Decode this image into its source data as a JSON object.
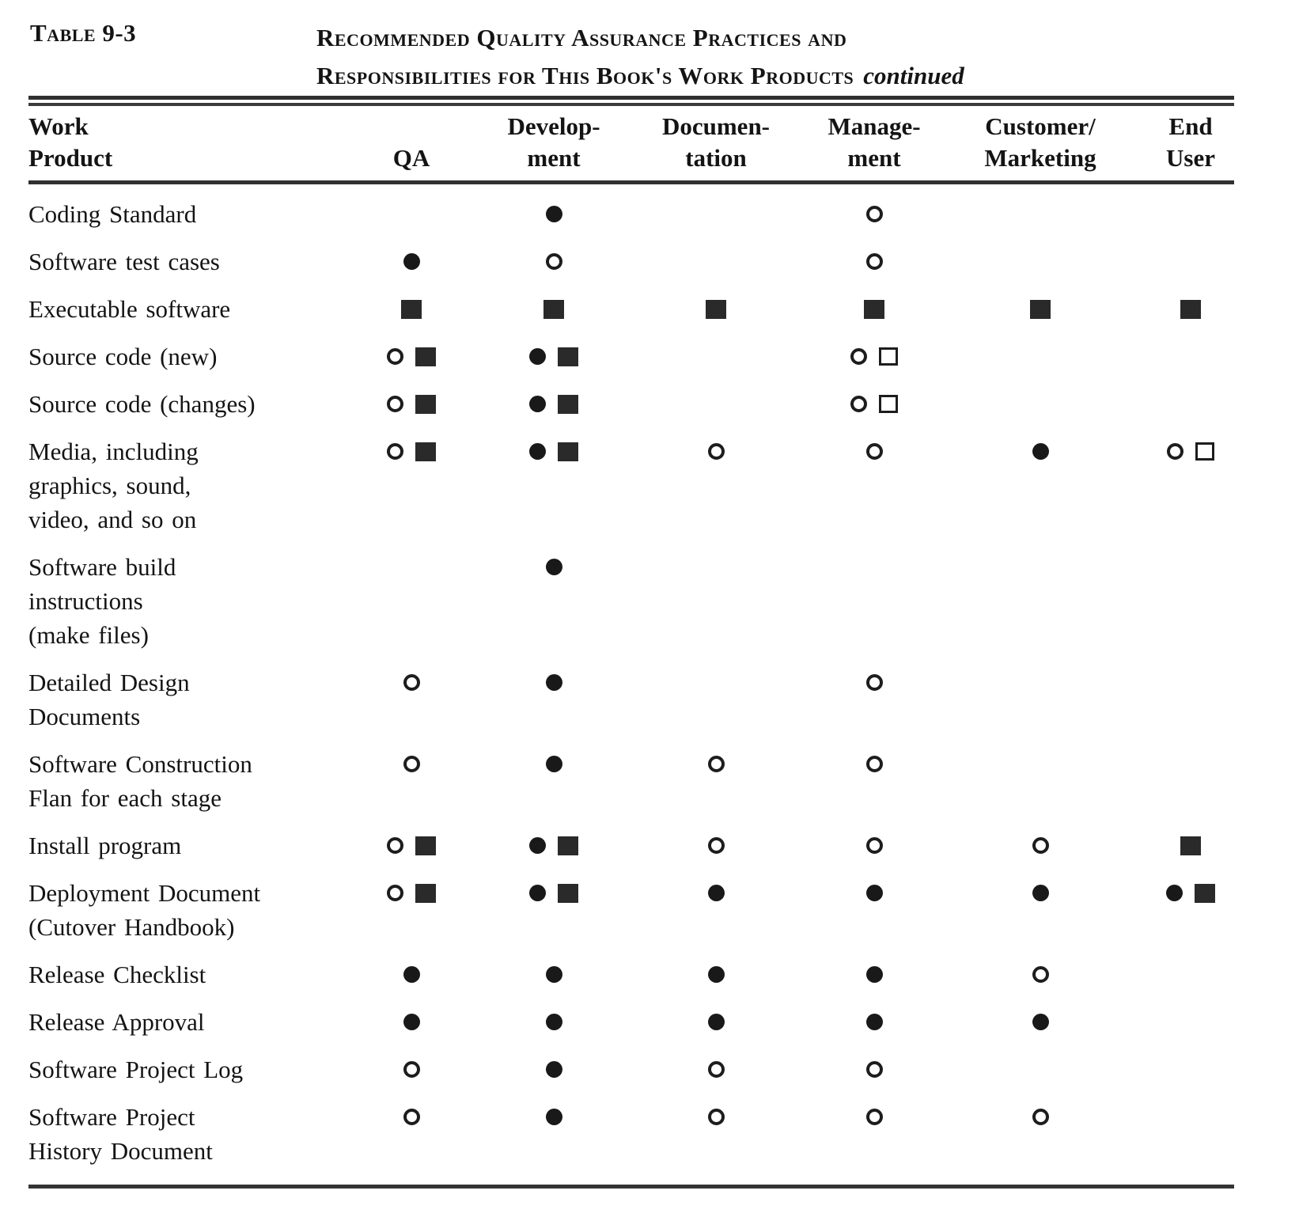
{
  "page": {
    "table_label": "Table 9-3",
    "title_line1": "Recommended Quality Assurance Practices and",
    "title_line2": "Responsibilities for This Book's Work Products",
    "title_continued": "continued"
  },
  "header": {
    "columns": [
      {
        "line1": "Work",
        "line2": "Product"
      },
      {
        "line1": "",
        "line2": "QA"
      },
      {
        "line1": "Develop-",
        "line2": "ment"
      },
      {
        "line1": "Documen-",
        "line2": "tation"
      },
      {
        "line1": "Manage-",
        "line2": "ment"
      },
      {
        "line1": "Customer/",
        "line2": "Marketing"
      },
      {
        "line1": "End",
        "line2": "User"
      }
    ]
  },
  "symbols_legend": {
    "filled-circle": "●",
    "open-circle": "○",
    "filled-square": "■",
    "open-square": "□"
  },
  "table": {
    "column_keys": [
      "qa",
      "development",
      "documentation",
      "management",
      "customer-marketing",
      "end-user"
    ],
    "rows": [
      {
        "label_lines": [
          "Coding Standard"
        ],
        "cells": [
          [],
          [
            "filled-circle"
          ],
          [],
          [
            "open-circle"
          ],
          [],
          []
        ]
      },
      {
        "label_lines": [
          "Software test cases"
        ],
        "cells": [
          [
            "filled-circle"
          ],
          [
            "open-circle"
          ],
          [],
          [
            "open-circle"
          ],
          [],
          []
        ]
      },
      {
        "label_lines": [
          "Executable software"
        ],
        "cells": [
          [
            "filled-square"
          ],
          [
            "filled-square"
          ],
          [
            "filled-square"
          ],
          [
            "filled-square"
          ],
          [
            "filled-square"
          ],
          [
            "filled-square"
          ]
        ]
      },
      {
        "label_lines": [
          "Source code (new)"
        ],
        "cells": [
          [
            "open-circle",
            "filled-square"
          ],
          [
            "filled-circle",
            "filled-square"
          ],
          [],
          [
            "open-circle",
            "open-square"
          ],
          [],
          []
        ]
      },
      {
        "label_lines": [
          "Source code (changes)"
        ],
        "cells": [
          [
            "open-circle",
            "filled-square"
          ],
          [
            "filled-circle",
            "filled-square"
          ],
          [],
          [
            "open-circle",
            "open-square"
          ],
          [],
          []
        ]
      },
      {
        "label_lines": [
          "Media, including",
          "graphics, sound,",
          "video, and so on"
        ],
        "cells": [
          [
            "open-circle",
            "filled-square"
          ],
          [
            "filled-circle",
            "filled-square"
          ],
          [
            "open-circle"
          ],
          [
            "open-circle"
          ],
          [
            "filled-circle"
          ],
          [
            "open-circle",
            "open-square"
          ]
        ]
      },
      {
        "label_lines": [
          "Software build",
          "instructions",
          "(make files)"
        ],
        "cells": [
          [],
          [
            "filled-circle"
          ],
          [],
          [],
          [],
          []
        ]
      },
      {
        "label_lines": [
          "Detailed Design",
          "Documents"
        ],
        "cells": [
          [
            "open-circle"
          ],
          [
            "filled-circle"
          ],
          [],
          [
            "open-circle"
          ],
          [],
          []
        ]
      },
      {
        "label_lines": [
          "Software Construction",
          "Flan for each stage"
        ],
        "cells": [
          [
            "open-circle"
          ],
          [
            "filled-circle"
          ],
          [
            "open-circle"
          ],
          [
            "open-circle"
          ],
          [],
          []
        ]
      },
      {
        "label_lines": [
          "Install program"
        ],
        "cells": [
          [
            "open-circle",
            "filled-square"
          ],
          [
            "filled-circle",
            "filled-square"
          ],
          [
            "open-circle"
          ],
          [
            "open-circle"
          ],
          [
            "open-circle"
          ],
          [
            "filled-square"
          ]
        ]
      },
      {
        "label_lines": [
          "Deployment Document",
          "(Cutover Handbook)"
        ],
        "cells": [
          [
            "open-circle",
            "filled-square"
          ],
          [
            "filled-circle",
            "filled-square"
          ],
          [
            "filled-circle"
          ],
          [
            "filled-circle"
          ],
          [
            "filled-circle"
          ],
          [
            "filled-circle",
            "filled-square"
          ]
        ]
      },
      {
        "label_lines": [
          "Release Checklist"
        ],
        "cells": [
          [
            "filled-circle"
          ],
          [
            "filled-circle"
          ],
          [
            "filled-circle"
          ],
          [
            "filled-circle"
          ],
          [
            "open-circle"
          ],
          []
        ]
      },
      {
        "label_lines": [
          "Release Approval"
        ],
        "cells": [
          [
            "filled-circle"
          ],
          [
            "filled-circle"
          ],
          [
            "filled-circle"
          ],
          [
            "filled-circle"
          ],
          [
            "filled-circle"
          ],
          []
        ]
      },
      {
        "label_lines": [
          "Software Project Log"
        ],
        "cells": [
          [
            "open-circle"
          ],
          [
            "filled-circle"
          ],
          [
            "open-circle"
          ],
          [
            "open-circle"
          ],
          [],
          []
        ]
      },
      {
        "label_lines": [
          "Software Project",
          "History Document"
        ],
        "cells": [
          [
            "open-circle"
          ],
          [
            "filled-circle"
          ],
          [
            "open-circle"
          ],
          [
            "open-circle"
          ],
          [
            "open-circle"
          ],
          []
        ]
      }
    ]
  }
}
